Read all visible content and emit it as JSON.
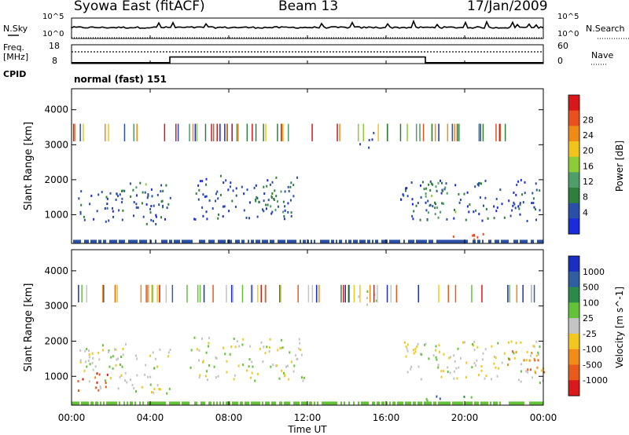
{
  "header": {
    "station": "Syowa East (fitACF)",
    "beam": "Beam 13",
    "date": "17/Jan/2009"
  },
  "sky_panel": {
    "left_label": "N.Sky",
    "right_label": "N.Search",
    "left_ticks": [
      "10^5",
      "10^0"
    ],
    "right_ticks": [
      "10^5",
      "10^0"
    ]
  },
  "freq_panel": {
    "left_label_line1": "Freq.",
    "left_label_line2": "[MHz]",
    "left_ticks": [
      "18",
      "8"
    ],
    "right_label": "Nave",
    "right_ticks": [
      "60",
      "0"
    ]
  },
  "cpid": {
    "label": "CPID",
    "value": "normal (fast) 151"
  },
  "colors": {
    "axis": "#000000",
    "power_scale": [
      "#1c2bd9",
      "#2a4fa8",
      "#2f7f3c",
      "#4d9e68",
      "#8ccc35",
      "#f2c31b",
      "#f08a16",
      "#e8501e",
      "#d8171b"
    ],
    "velocity_scale": [
      "#1a2fbf",
      "#2f5ea3",
      "#2a8a4a",
      "#63c23a",
      "#c4c4c4",
      "#f2c720",
      "#f28c18",
      "#ea5a1a",
      "#d81a1a"
    ]
  },
  "chart_data": [
    {
      "type": "line",
      "panel": "N.Sky / N.Search",
      "x_ticks": [
        "00:00",
        "04:00",
        "08:00",
        "12:00",
        "16:00",
        "20:00",
        "00:00"
      ]
    },
    {
      "type": "line",
      "panel": "Freq / Nave",
      "series": [
        {
          "name": "Freq.",
          "segments": [
            {
              "from_h": 0,
              "to_h": 5,
              "value": 8.5
            },
            {
              "from_h": 5,
              "to_h": 18,
              "value": 11.5
            },
            {
              "from_h": 18,
              "to_h": 24,
              "value": 8.5
            }
          ]
        },
        {
          "name": "Nave",
          "segments": [
            {
              "from_h": 0,
              "to_h": 24,
              "value": 30
            }
          ]
        }
      ]
    },
    {
      "type": "heatmap",
      "title": "Power",
      "ylabel": "Slant Range [km]",
      "yticks": [
        "1000",
        "2000",
        "3000",
        "4000"
      ],
      "xlim_hours": [
        0,
        24
      ],
      "ylim_km": [
        180,
        4600
      ],
      "colorbar": {
        "label": "Power [dB]",
        "ticks": [
          "4",
          "8",
          "12",
          "16",
          "20",
          "24",
          "28"
        ]
      },
      "regions": [
        {
          "t0": 0.3,
          "t1": 5.0,
          "r0": 700,
          "r1": 1700,
          "level": 1
        },
        {
          "t0": 2.2,
          "t1": 4.8,
          "r0": 1200,
          "r1": 1900,
          "level": 1
        },
        {
          "t0": 3.0,
          "t1": 3.8,
          "r0": 1700,
          "r1": 1900,
          "level": 3
        },
        {
          "t0": 6.2,
          "t1": 11.6,
          "r0": 850,
          "r1": 2100,
          "level": 1
        },
        {
          "t0": 9.2,
          "t1": 11.2,
          "r0": 900,
          "r1": 1700,
          "level": 2
        },
        {
          "t0": 14.6,
          "t1": 15.4,
          "r0": 2900,
          "r1": 3400,
          "level": 1
        },
        {
          "t0": 16.7,
          "t1": 24.0,
          "r0": 800,
          "r1": 2000,
          "level": 1
        },
        {
          "t0": 17.8,
          "t1": 19.5,
          "r0": 900,
          "r1": 1900,
          "level": 3
        },
        {
          "t0": 18.0,
          "t1": 21.5,
          "r0": 280,
          "r1": 450,
          "level": 7
        }
      ]
    },
    {
      "type": "heatmap",
      "title": "Velocity",
      "ylabel": "Slant Range [km]",
      "yticks": [
        "1000",
        "2000",
        "3000",
        "4000"
      ],
      "xlim_hours": [
        0,
        24
      ],
      "ylim_km": [
        180,
        4600
      ],
      "xlabel": "Time UT",
      "colorbar": {
        "label": "Velocity [m s^-1]",
        "ticks": [
          "1000",
          "500",
          "100",
          "25",
          "-25",
          "-100",
          "-500",
          "-1000"
        ]
      },
      "regions": [
        {
          "t0": 0.3,
          "t1": 5.0,
          "r0": 500,
          "r1": 1900,
          "level": 4
        },
        {
          "t0": 0.3,
          "t1": 1.8,
          "r0": 550,
          "r1": 1200,
          "level": 7
        },
        {
          "t0": 6.0,
          "t1": 11.8,
          "r0": 850,
          "r1": 2100,
          "level": 4
        },
        {
          "t0": 14.5,
          "t1": 15.5,
          "r0": 2900,
          "r1": 3400,
          "level": 4
        },
        {
          "t0": 16.8,
          "t1": 24.0,
          "r0": 800,
          "r1": 2000,
          "level": 4
        },
        {
          "t0": 18.0,
          "t1": 21.5,
          "r0": 280,
          "r1": 420,
          "level": 2
        },
        {
          "t0": 22.0,
          "t1": 24.0,
          "r0": 1000,
          "r1": 1700,
          "level": 6
        }
      ]
    }
  ],
  "x_axis": {
    "label": "Time UT",
    "ticks": [
      "00:00",
      "04:00",
      "08:00",
      "12:00",
      "16:00",
      "20:00",
      "00:00"
    ]
  }
}
